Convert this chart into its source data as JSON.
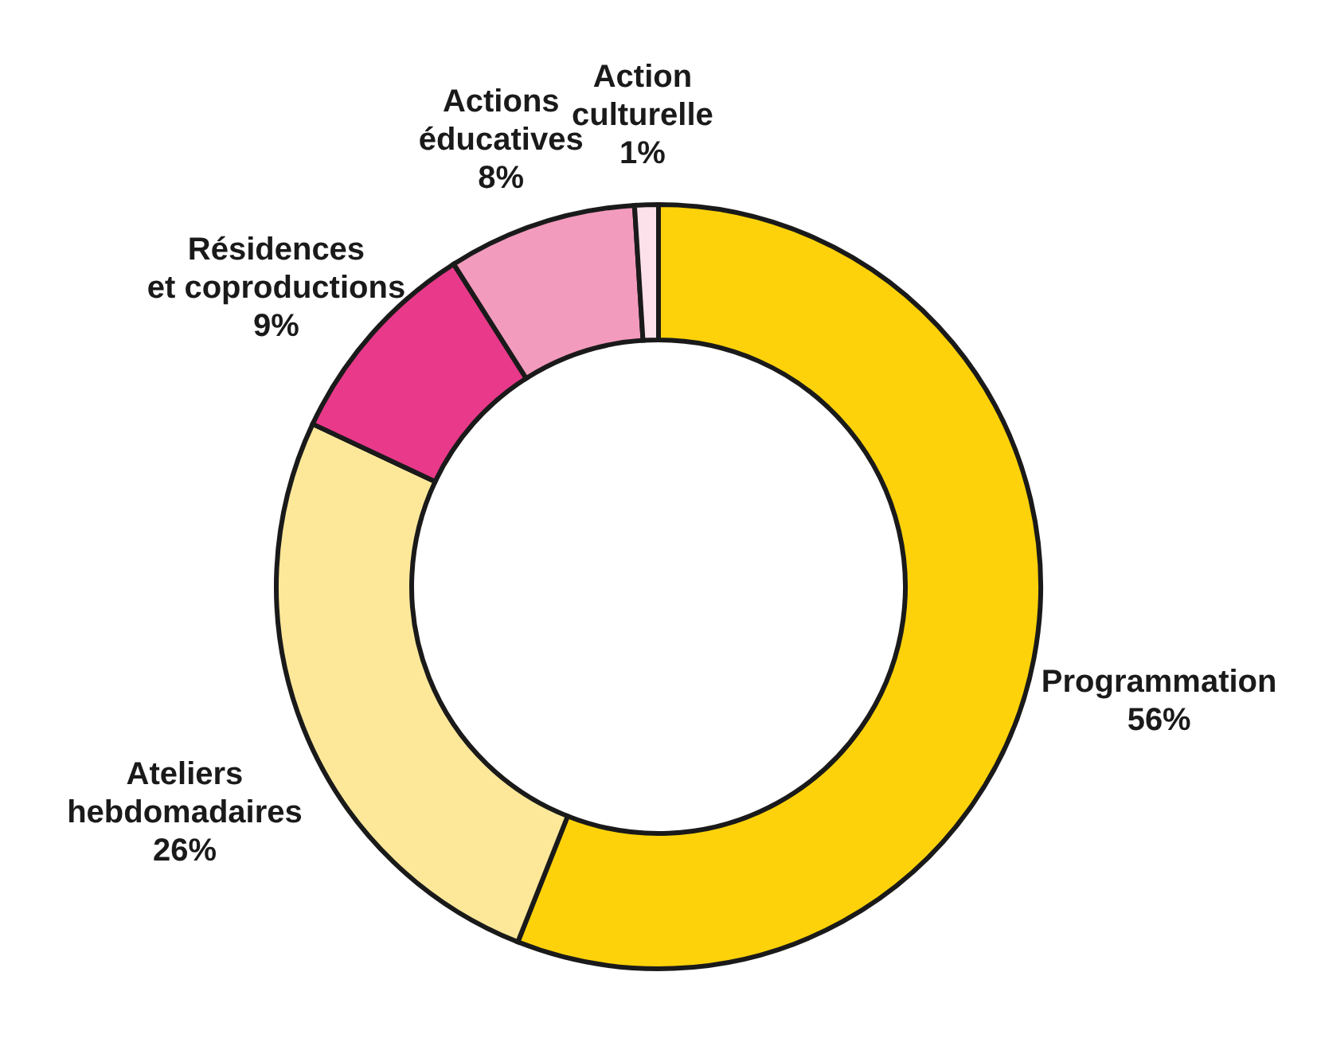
{
  "chart_data": {
    "type": "donut",
    "categories": [
      "Programmation",
      "Ateliers\nhebdomadaires",
      "Résidences\net coproductions",
      "Actions\néducatives",
      "Action\nculturelle"
    ],
    "values": [
      56,
      26,
      9,
      8,
      1
    ],
    "colors": [
      "#fdd20a",
      "#fde89a",
      "#e8398a",
      "#f29bbd",
      "#fde1ea"
    ],
    "value_labels": [
      "56%",
      "26%",
      "9%",
      "8%",
      "1%"
    ]
  }
}
